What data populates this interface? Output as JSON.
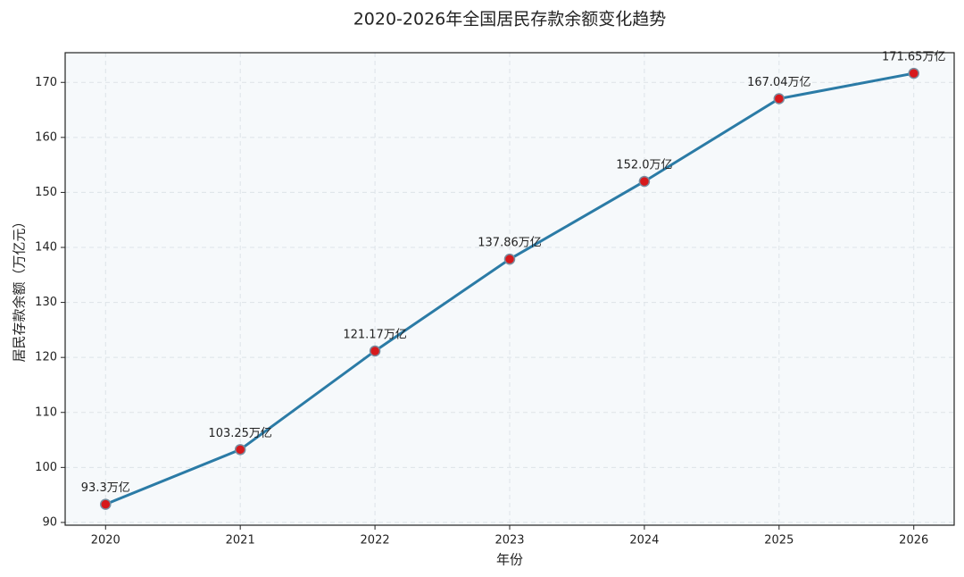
{
  "chart_data": {
    "type": "line",
    "title": "2020-2026年全国居民存款余额变化趋势",
    "x_label": "年份",
    "y_label": "居民存款余额（万亿元）",
    "x": [
      2020,
      2021,
      2022,
      2023,
      2024,
      2025,
      2026
    ],
    "values": [
      93.3,
      103.25,
      121.17,
      137.86,
      152.0,
      167.04,
      171.65
    ],
    "value_labels": [
      "93.3万亿",
      "103.25万亿",
      "121.17万亿",
      "137.86万亿",
      "152.0万亿",
      "167.04万亿",
      "171.65万亿"
    ],
    "color": "#2b7ba6",
    "marker_color": "#d7191c",
    "xlim": [
      2019.7,
      2026.3
    ],
    "xticks": [
      2020,
      2021,
      2022,
      2023,
      2024,
      2025,
      2026
    ],
    "ylim": [
      89.5,
      175.4
    ],
    "yticks": [
      90,
      100,
      110,
      120,
      130,
      140,
      150,
      160,
      170
    ],
    "grid": true
  }
}
